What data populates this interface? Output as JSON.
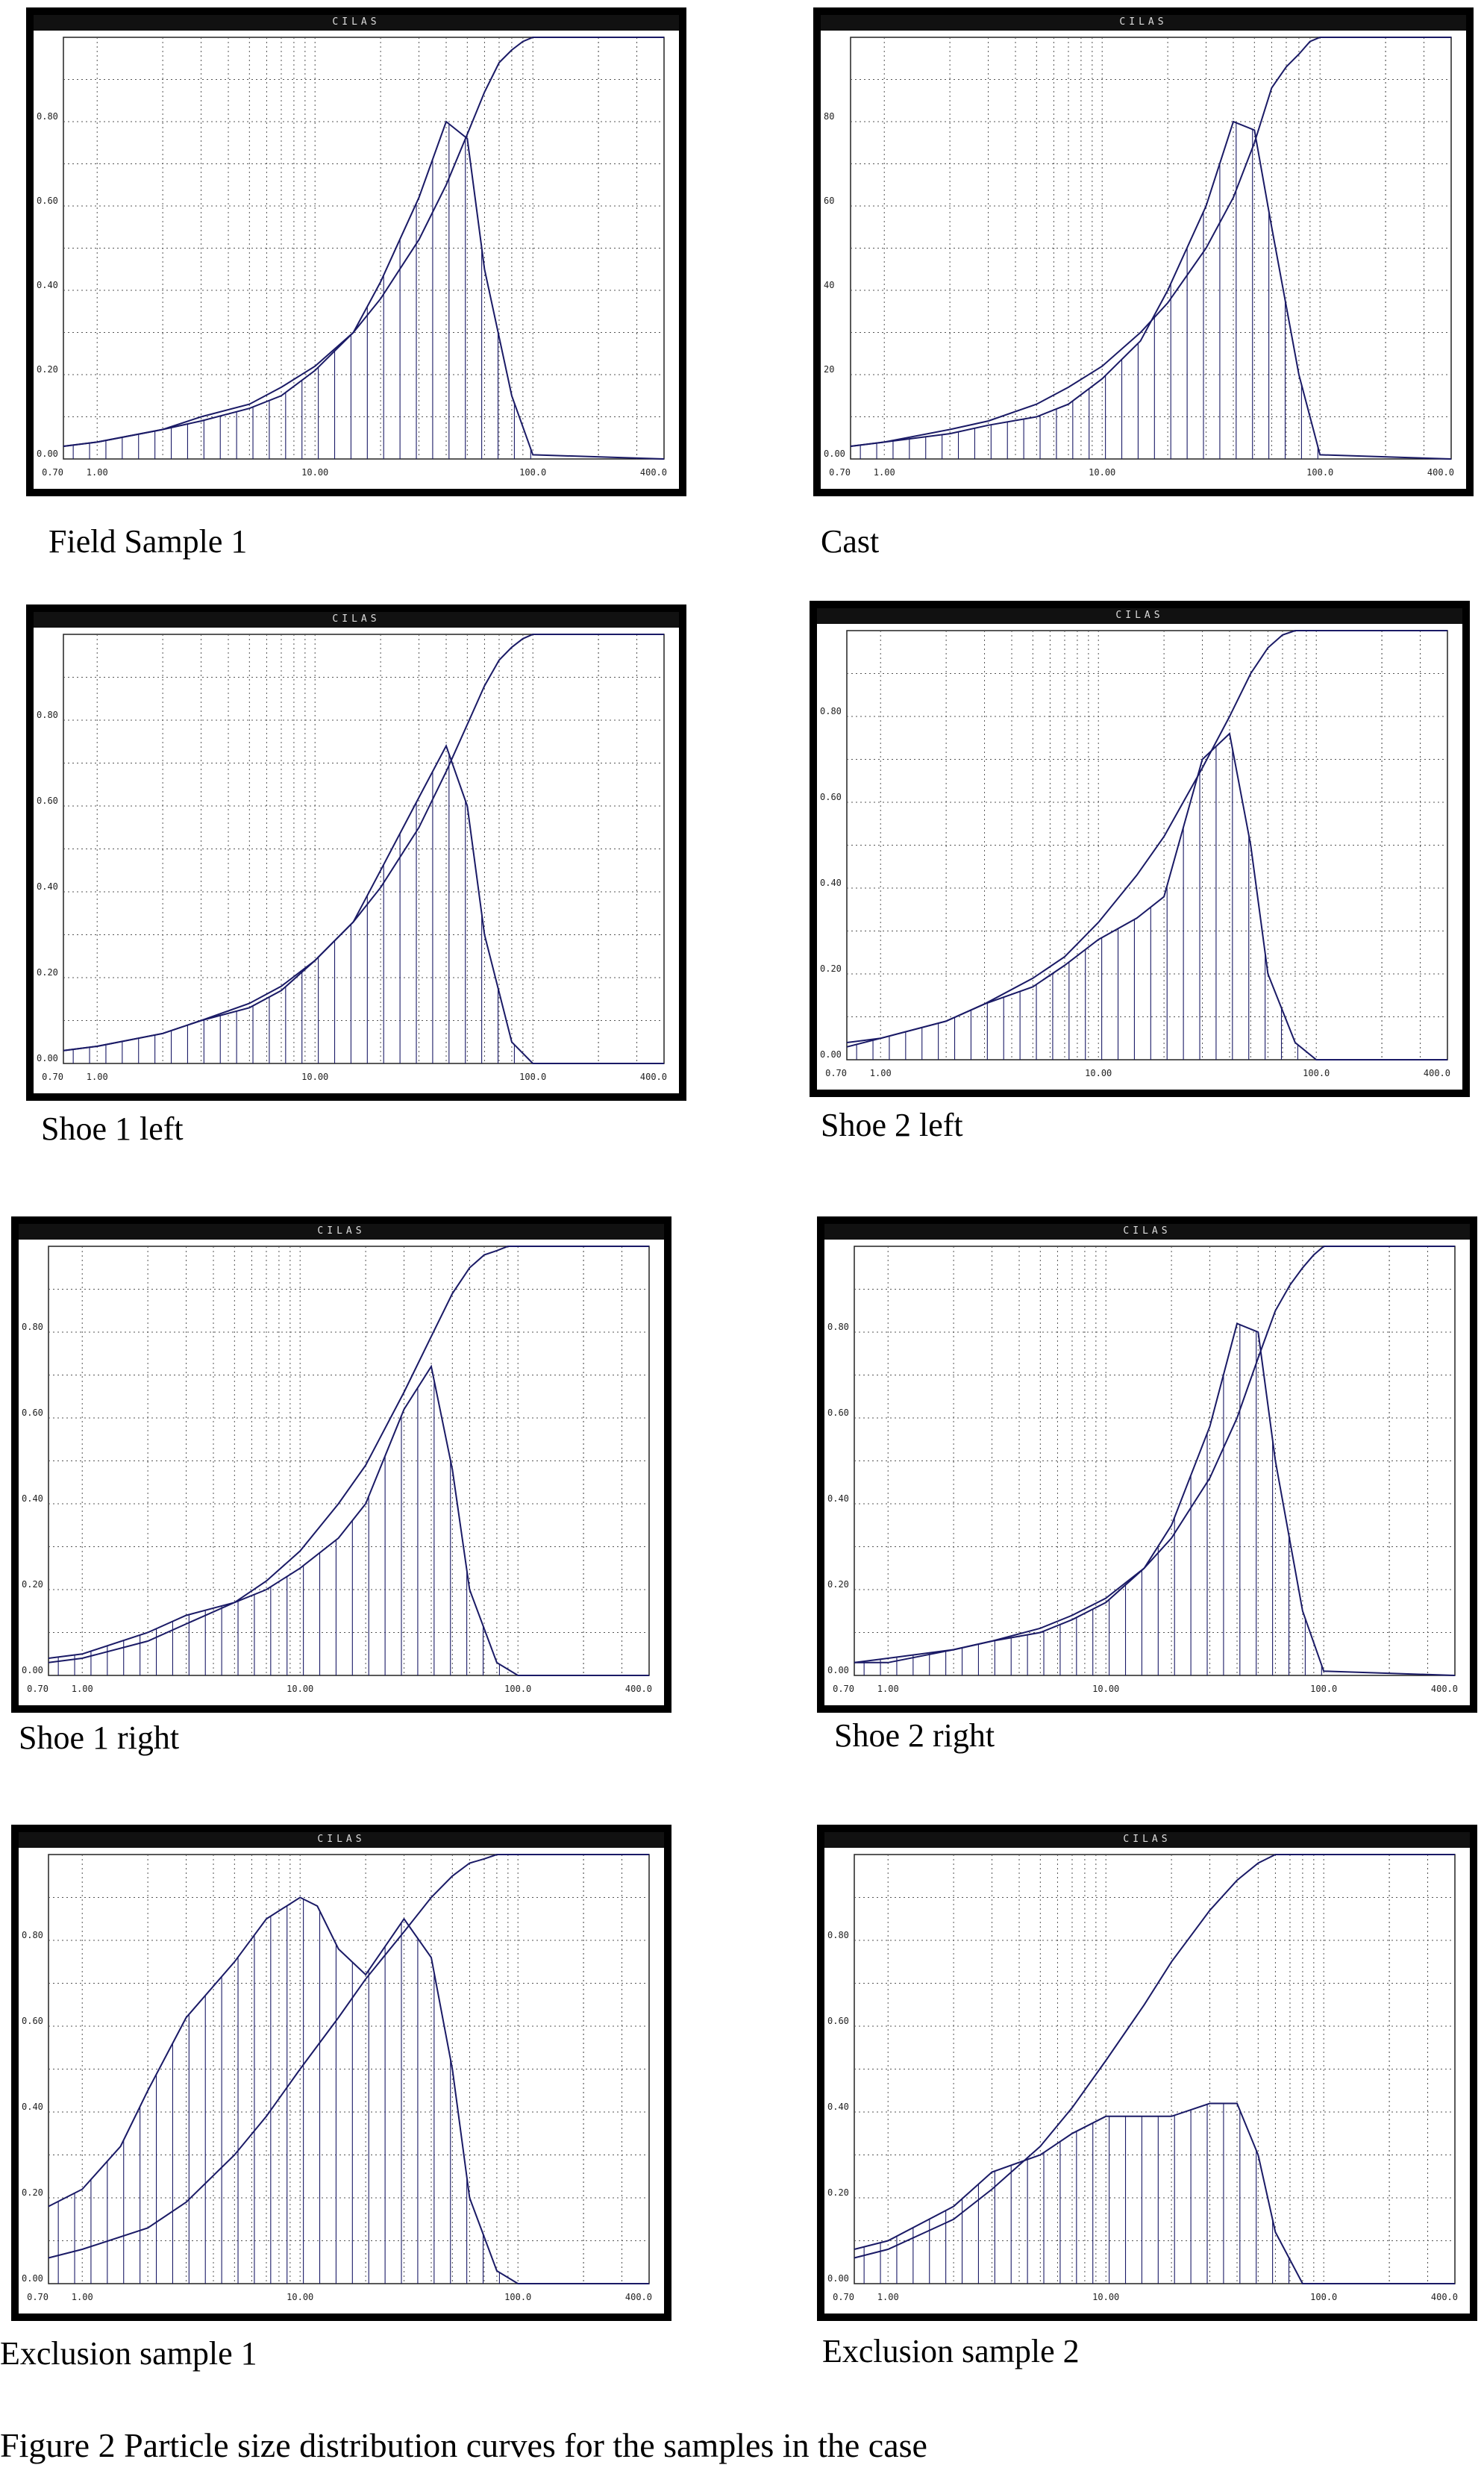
{
  "figure_caption": "Figure 2 Particle size distribution curves for the samples in the case",
  "colors": {
    "curve": "#1a1a66",
    "grid": "#555555",
    "frame": "#000000"
  },
  "chart_data": [
    {
      "type": "line",
      "header": "CILAS",
      "caption": "Field Sample 1",
      "xlim": [
        0.7,
        400
      ],
      "x_scale": "log",
      "ylim": [
        0,
        1.0
      ],
      "x_ticks": [
        0.7,
        1,
        10,
        100,
        400
      ],
      "x_tick_labels": [
        "0.70",
        "1.00",
        "10.00",
        "100.0",
        "400.0"
      ],
      "y_ticks": [
        0,
        0.2,
        0.4,
        0.6,
        0.8
      ],
      "y_tick_labels": [
        "0.00",
        "0.20",
        "0.40",
        "0.60",
        "0.80"
      ],
      "series": [
        {
          "kind": "histogram-line",
          "x": [
            0.7,
            1,
            2,
            3,
            5,
            7,
            10,
            15,
            20,
            30,
            40,
            50,
            60,
            80,
            100,
            400
          ],
          "y": [
            0.03,
            0.04,
            0.07,
            0.09,
            0.12,
            0.15,
            0.21,
            0.3,
            0.42,
            0.62,
            0.8,
            0.76,
            0.45,
            0.15,
            0.01,
            0.0
          ]
        },
        {
          "kind": "cumulative",
          "x": [
            0.7,
            1,
            2,
            3,
            5,
            7,
            10,
            15,
            20,
            30,
            40,
            50,
            60,
            70,
            80,
            90,
            100,
            400
          ],
          "y": [
            0.03,
            0.04,
            0.07,
            0.1,
            0.13,
            0.17,
            0.22,
            0.3,
            0.38,
            0.52,
            0.65,
            0.77,
            0.87,
            0.94,
            0.97,
            0.99,
            1.0,
            1.0
          ]
        }
      ]
    },
    {
      "type": "line",
      "header": "CILAS",
      "caption": "Cast",
      "xlim": [
        0.7,
        400
      ],
      "x_scale": "log",
      "ylim": [
        0,
        1.0
      ],
      "x_ticks": [
        0.7,
        1,
        10,
        100,
        400
      ],
      "x_tick_labels": [
        "0.70",
        "1.00",
        "10.00",
        "100.0",
        "400.0"
      ],
      "y_ticks": [
        0,
        0.2,
        0.4,
        0.6,
        0.8
      ],
      "y_tick_labels": [
        "0.00",
        "20",
        "40",
        "60",
        "80"
      ],
      "series": [
        {
          "kind": "histogram-line",
          "x": [
            0.7,
            1,
            2,
            3,
            5,
            7,
            10,
            15,
            20,
            30,
            40,
            50,
            60,
            80,
            100,
            400
          ],
          "y": [
            0.03,
            0.04,
            0.06,
            0.08,
            0.1,
            0.13,
            0.19,
            0.28,
            0.4,
            0.6,
            0.8,
            0.78,
            0.55,
            0.2,
            0.01,
            0.0
          ]
        },
        {
          "kind": "cumulative",
          "x": [
            0.7,
            1,
            2,
            3,
            5,
            7,
            10,
            15,
            20,
            30,
            40,
            50,
            60,
            70,
            80,
            90,
            100,
            400
          ],
          "y": [
            0.03,
            0.04,
            0.07,
            0.09,
            0.13,
            0.17,
            0.22,
            0.3,
            0.37,
            0.5,
            0.62,
            0.75,
            0.88,
            0.93,
            0.96,
            0.99,
            1.0,
            1.0
          ]
        }
      ]
    },
    {
      "type": "line",
      "header": "CILAS",
      "caption": "Shoe 1 left",
      "xlim": [
        0.7,
        400
      ],
      "x_scale": "log",
      "ylim": [
        0,
        1.0
      ],
      "x_ticks": [
        0.7,
        1,
        10,
        100,
        400
      ],
      "x_tick_labels": [
        "0.70",
        "1.00",
        "10.00",
        "100.0",
        "400.0"
      ],
      "y_ticks": [
        0,
        0.2,
        0.4,
        0.6,
        0.8
      ],
      "y_tick_labels": [
        "0.00",
        "0.20",
        "0.40",
        "0.60",
        "0.80"
      ],
      "series": [
        {
          "kind": "histogram-line",
          "x": [
            0.7,
            1,
            2,
            3,
            5,
            7,
            10,
            15,
            20,
            30,
            40,
            50,
            60,
            80,
            100,
            400
          ],
          "y": [
            0.03,
            0.04,
            0.07,
            0.1,
            0.13,
            0.17,
            0.24,
            0.33,
            0.45,
            0.62,
            0.74,
            0.6,
            0.3,
            0.05,
            0.0,
            0.0
          ]
        },
        {
          "kind": "cumulative",
          "x": [
            0.7,
            1,
            2,
            3,
            5,
            7,
            10,
            15,
            20,
            30,
            40,
            50,
            60,
            70,
            80,
            90,
            100,
            400
          ],
          "y": [
            0.03,
            0.04,
            0.07,
            0.1,
            0.14,
            0.18,
            0.24,
            0.33,
            0.41,
            0.55,
            0.68,
            0.79,
            0.88,
            0.94,
            0.97,
            0.99,
            1.0,
            1.0
          ]
        }
      ]
    },
    {
      "type": "line",
      "header": "CILAS",
      "caption": "Shoe 2 left",
      "xlim": [
        0.7,
        400
      ],
      "x_scale": "log",
      "ylim": [
        0,
        1.0
      ],
      "x_ticks": [
        0.7,
        1,
        10,
        100,
        400
      ],
      "x_tick_labels": [
        "0.70",
        "1.00",
        "10.00",
        "100.0",
        "400.0"
      ],
      "y_ticks": [
        0,
        0.2,
        0.4,
        0.6,
        0.8
      ],
      "y_tick_labels": [
        "0.00",
        "0.20",
        "0.40",
        "0.60",
        "0.80"
      ],
      "series": [
        {
          "kind": "histogram-line",
          "x": [
            0.7,
            1,
            2,
            3,
            5,
            7,
            10,
            15,
            20,
            30,
            40,
            50,
            60,
            80,
            100,
            400
          ],
          "y": [
            0.03,
            0.05,
            0.09,
            0.13,
            0.17,
            0.22,
            0.28,
            0.33,
            0.38,
            0.7,
            0.76,
            0.5,
            0.2,
            0.04,
            0.0,
            0.0
          ]
        },
        {
          "kind": "cumulative",
          "x": [
            0.7,
            1,
            2,
            3,
            5,
            7,
            10,
            15,
            20,
            30,
            40,
            50,
            60,
            70,
            80,
            90,
            100,
            400
          ],
          "y": [
            0.04,
            0.05,
            0.09,
            0.13,
            0.19,
            0.24,
            0.32,
            0.43,
            0.52,
            0.68,
            0.8,
            0.9,
            0.96,
            0.99,
            1.0,
            1.0,
            1.0,
            1.0
          ]
        }
      ]
    },
    {
      "type": "line",
      "header": "CILAS",
      "caption": "Shoe 1 right",
      "xlim": [
        0.7,
        400
      ],
      "x_scale": "log",
      "ylim": [
        0,
        1.0
      ],
      "x_ticks": [
        0.7,
        1,
        10,
        100,
        400
      ],
      "x_tick_labels": [
        "0.70",
        "1.00",
        "10.00",
        "100.0",
        "400.0"
      ],
      "y_ticks": [
        0,
        0.2,
        0.4,
        0.6,
        0.8
      ],
      "y_tick_labels": [
        "0.00",
        "0.20",
        "0.40",
        "0.60",
        "0.80"
      ],
      "series": [
        {
          "kind": "histogram-line",
          "x": [
            0.7,
            1,
            2,
            3,
            5,
            7,
            10,
            15,
            20,
            30,
            40,
            50,
            60,
            80,
            100,
            400
          ],
          "y": [
            0.04,
            0.05,
            0.1,
            0.14,
            0.17,
            0.2,
            0.25,
            0.32,
            0.4,
            0.62,
            0.72,
            0.48,
            0.2,
            0.03,
            0.0,
            0.0
          ]
        },
        {
          "kind": "cumulative",
          "x": [
            0.7,
            1,
            2,
            3,
            5,
            7,
            10,
            15,
            20,
            30,
            40,
            50,
            60,
            70,
            80,
            90,
            100,
            400
          ],
          "y": [
            0.03,
            0.04,
            0.08,
            0.12,
            0.17,
            0.22,
            0.29,
            0.4,
            0.49,
            0.66,
            0.79,
            0.89,
            0.95,
            0.98,
            0.99,
            1.0,
            1.0,
            1.0
          ]
        }
      ]
    },
    {
      "type": "line",
      "header": "CILAS",
      "caption": "Shoe 2 right",
      "xlim": [
        0.7,
        400
      ],
      "x_scale": "log",
      "ylim": [
        0,
        1.0
      ],
      "x_ticks": [
        0.7,
        1,
        10,
        100,
        400
      ],
      "x_tick_labels": [
        "0.70",
        "1.00",
        "10.00",
        "100.0",
        "400.0"
      ],
      "y_ticks": [
        0,
        0.2,
        0.4,
        0.6,
        0.8
      ],
      "y_tick_labels": [
        "0.00",
        "0.20",
        "0.40",
        "0.60",
        "0.80"
      ],
      "series": [
        {
          "kind": "histogram-line",
          "x": [
            0.7,
            1,
            2,
            3,
            5,
            7,
            10,
            15,
            20,
            30,
            40,
            50,
            60,
            80,
            100,
            400
          ],
          "y": [
            0.03,
            0.04,
            0.06,
            0.08,
            0.1,
            0.13,
            0.17,
            0.25,
            0.35,
            0.58,
            0.82,
            0.8,
            0.5,
            0.15,
            0.01,
            0.0
          ]
        },
        {
          "kind": "cumulative",
          "x": [
            0.7,
            1,
            2,
            3,
            5,
            7,
            10,
            15,
            20,
            30,
            40,
            50,
            60,
            70,
            80,
            90,
            100,
            400
          ],
          "y": [
            0.03,
            0.03,
            0.06,
            0.08,
            0.11,
            0.14,
            0.18,
            0.25,
            0.32,
            0.46,
            0.6,
            0.74,
            0.85,
            0.91,
            0.95,
            0.98,
            1.0,
            1.0
          ]
        }
      ]
    },
    {
      "type": "line",
      "header": "CILAS",
      "caption": "Exclusion sample 1",
      "xlim": [
        0.7,
        400
      ],
      "x_scale": "log",
      "ylim": [
        0,
        1.0
      ],
      "x_ticks": [
        0.7,
        1,
        10,
        100,
        400
      ],
      "x_tick_labels": [
        "0.70",
        "1.00",
        "10.00",
        "100.0",
        "400.0"
      ],
      "y_ticks": [
        0,
        0.2,
        0.4,
        0.6,
        0.8
      ],
      "y_tick_labels": [
        "0.00",
        "0.20",
        "0.40",
        "0.60",
        "0.80"
      ],
      "series": [
        {
          "kind": "histogram-line",
          "x": [
            0.7,
            1,
            1.5,
            2,
            3,
            5,
            7,
            10,
            12,
            15,
            20,
            30,
            40,
            50,
            60,
            80,
            100,
            400
          ],
          "y": [
            0.18,
            0.22,
            0.32,
            0.45,
            0.62,
            0.75,
            0.85,
            0.9,
            0.88,
            0.78,
            0.72,
            0.85,
            0.76,
            0.5,
            0.2,
            0.03,
            0.0,
            0.0
          ]
        },
        {
          "kind": "cumulative",
          "x": [
            0.7,
            1,
            2,
            3,
            5,
            7,
            10,
            15,
            20,
            30,
            40,
            50,
            60,
            70,
            80,
            90,
            100,
            400
          ],
          "y": [
            0.06,
            0.08,
            0.13,
            0.19,
            0.3,
            0.39,
            0.5,
            0.62,
            0.71,
            0.82,
            0.9,
            0.95,
            0.98,
            0.99,
            1.0,
            1.0,
            1.0,
            1.0
          ]
        }
      ]
    },
    {
      "type": "line",
      "header": "CILAS",
      "caption": "Exclusion sample 2",
      "xlim": [
        0.7,
        400
      ],
      "x_scale": "log",
      "ylim": [
        0,
        1.0
      ],
      "x_ticks": [
        0.7,
        1,
        10,
        100,
        400
      ],
      "x_tick_labels": [
        "0.70",
        "1.00",
        "10.00",
        "100.0",
        "400.0"
      ],
      "y_ticks": [
        0,
        0.2,
        0.4,
        0.6,
        0.8
      ],
      "y_tick_labels": [
        "0.00",
        "0.20",
        "0.40",
        "0.60",
        "0.80"
      ],
      "series": [
        {
          "kind": "histogram-line",
          "x": [
            0.7,
            1,
            2,
            3,
            5,
            7,
            10,
            15,
            20,
            30,
            40,
            50,
            60,
            80,
            100,
            400
          ],
          "y": [
            0.08,
            0.1,
            0.18,
            0.26,
            0.3,
            0.35,
            0.39,
            0.39,
            0.39,
            0.42,
            0.42,
            0.3,
            0.12,
            0.0,
            0.0,
            0.0
          ]
        },
        {
          "kind": "cumulative",
          "x": [
            0.7,
            1,
            2,
            3,
            5,
            7,
            10,
            15,
            20,
            30,
            40,
            50,
            60,
            70,
            80,
            90,
            100,
            400
          ],
          "y": [
            0.06,
            0.08,
            0.15,
            0.22,
            0.32,
            0.41,
            0.52,
            0.65,
            0.75,
            0.87,
            0.94,
            0.98,
            1.0,
            1.0,
            1.0,
            1.0,
            1.0,
            1.0
          ]
        }
      ]
    }
  ]
}
